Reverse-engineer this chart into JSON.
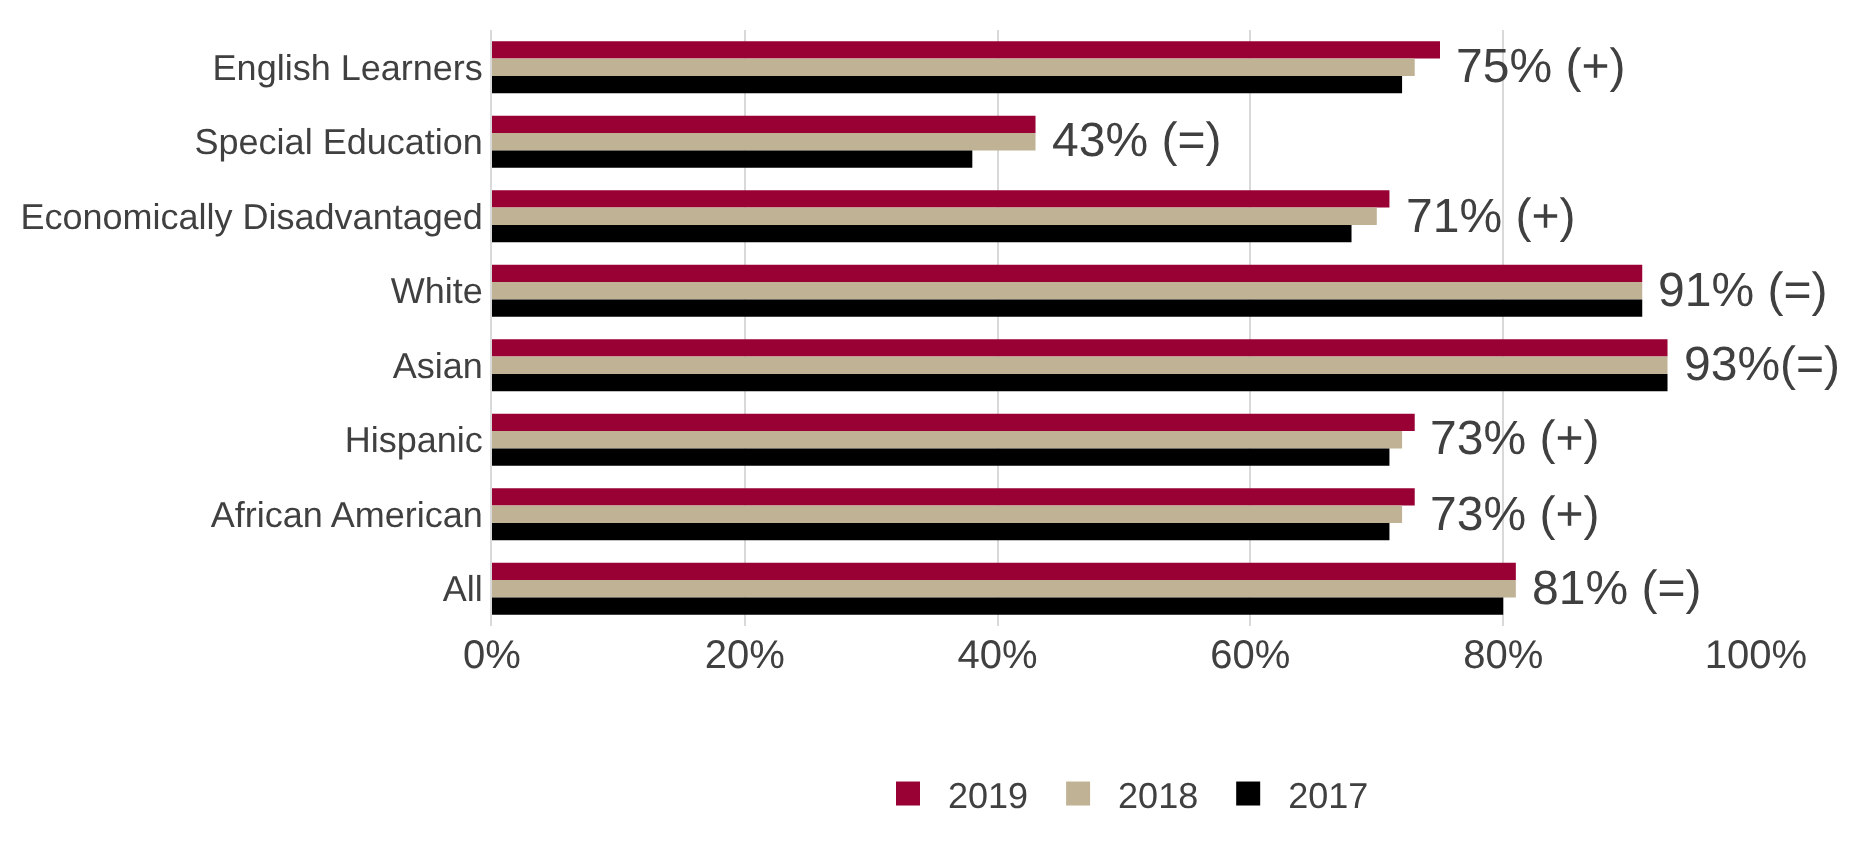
{
  "chart_data": {
    "type": "bar",
    "orientation": "horizontal",
    "categories": [
      "English Learners",
      "Special Education",
      "Economically Disadvantaged",
      "White",
      "Asian",
      "Hispanic",
      "African American",
      "All"
    ],
    "series": [
      {
        "name": "2019",
        "color": "#990033",
        "values": [
          75,
          43,
          71,
          91,
          93,
          73,
          73,
          81
        ]
      },
      {
        "name": "2018",
        "color": "#c0b395",
        "values": [
          73,
          43,
          70,
          91,
          93,
          72,
          72,
          81
        ]
      },
      {
        "name": "2017",
        "color": "#000000",
        "values": [
          72,
          38,
          68,
          91,
          93,
          71,
          71,
          80
        ]
      }
    ],
    "xlim": [
      0,
      100
    ],
    "xticks": [
      {
        "value": 0,
        "label": "0%"
      },
      {
        "value": 20,
        "label": "20%"
      },
      {
        "value": 40,
        "label": "40%"
      },
      {
        "value": 60,
        "label": "60%"
      },
      {
        "value": 80,
        "label": "80%"
      },
      {
        "value": 100,
        "label": "100%"
      }
    ],
    "grid": "x",
    "legend": "bottom",
    "annotations": [
      {
        "text": "75% (+)",
        "x": 75,
        "y": "English Learners"
      },
      {
        "text": "43% (=)",
        "x": 43,
        "y": "Special Education"
      },
      {
        "text": "71% (+)",
        "x": 71,
        "y": "Economically Disadvantaged"
      },
      {
        "text": "91% (=)",
        "x": 91,
        "y": "White"
      },
      {
        "text": "93%(=)",
        "x": 93,
        "y": "Asian"
      },
      {
        "text": "73% (+)",
        "x": 73,
        "y": "Hispanic"
      },
      {
        "text": "73% (+)",
        "x": 73,
        "y": "African American"
      },
      {
        "text": "81% (=)",
        "x": 81,
        "y": "All"
      }
    ]
  }
}
